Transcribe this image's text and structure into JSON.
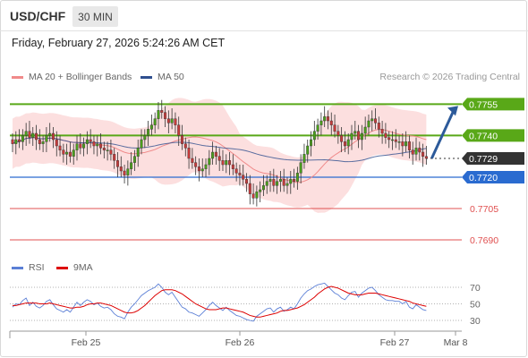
{
  "header": {
    "symbol": "USD/CHF",
    "timeframe": "30 MIN"
  },
  "datetime": "Friday, February 27, 2026 5:24:26 AM CET",
  "legend": {
    "ma20": {
      "label": "MA 20 + Bollinger Bands",
      "color": "#f08a8a"
    },
    "ma50": {
      "label": "MA 50",
      "color": "#2f4f8f"
    },
    "credit": "Research © 2026 Trading Central"
  },
  "rsi_legend": {
    "rsi": {
      "label": "RSI",
      "color": "#5b7fd6"
    },
    "ma9": {
      "label": "9MA",
      "color": "#dd0000"
    }
  },
  "colors": {
    "support_green": "#59a818",
    "pivot_blue": "#2a6bd0",
    "target_red": "#e05050",
    "current": "#333333",
    "arrow": "#2c5a9a",
    "candle_up": "#4a9e1c",
    "candle_down": "#c63b3b",
    "band_fill": "#fbd7d7"
  },
  "chart_data": {
    "type": "candlestick",
    "x_ticks": [
      "Feb 25",
      "Feb 26",
      "Feb 27",
      "Mar 8"
    ],
    "y_range": [
      0.7684,
      0.7762
    ],
    "price_levels": [
      {
        "value": 0.7755,
        "label": "0.7755",
        "kind": "resistance"
      },
      {
        "value": 0.774,
        "label": "0.7740",
        "kind": "resistance"
      },
      {
        "value": 0.7729,
        "label": "0.7729",
        "kind": "current"
      },
      {
        "value": 0.772,
        "label": "0.7720",
        "kind": "pivot"
      },
      {
        "value": 0.7705,
        "label": "0.7705",
        "kind": "support"
      },
      {
        "value": 0.769,
        "label": "0.7690",
        "kind": "support"
      }
    ],
    "closes": [
      0.7736,
      0.7738,
      0.7737,
      0.774,
      0.7742,
      0.7739,
      0.7741,
      0.7738,
      0.7736,
      0.7737,
      0.774,
      0.7741,
      0.7738,
      0.7735,
      0.7733,
      0.7731,
      0.7732,
      0.773,
      0.7733,
      0.7736,
      0.7734,
      0.7736,
      0.7738,
      0.7737,
      0.7735,
      0.7736,
      0.7734,
      0.7733,
      0.7733,
      0.7731,
      0.7728,
      0.7725,
      0.7723,
      0.7721,
      0.7724,
      0.7727,
      0.773,
      0.7734,
      0.7738,
      0.774,
      0.7743,
      0.7745,
      0.7748,
      0.7752,
      0.7751,
      0.7748,
      0.7746,
      0.7748,
      0.7745,
      0.774,
      0.7736,
      0.7734,
      0.7729,
      0.7727,
      0.7725,
      0.7723,
      0.7724,
      0.7726,
      0.7729,
      0.7732,
      0.773,
      0.7728,
      0.7726,
      0.7728,
      0.7726,
      0.7724,
      0.7722,
      0.7721,
      0.7719,
      0.7717,
      0.7712,
      0.771,
      0.7713,
      0.7714,
      0.7716,
      0.7718,
      0.7719,
      0.7716,
      0.7718,
      0.7719,
      0.7716,
      0.7717,
      0.7719,
      0.7718,
      0.7722,
      0.7727,
      0.7731,
      0.7735,
      0.7738,
      0.7742,
      0.7745,
      0.7747,
      0.7749,
      0.7747,
      0.7745,
      0.7742,
      0.774,
      0.7737,
      0.7735,
      0.7738,
      0.7741,
      0.7742,
      0.7738,
      0.7741,
      0.7744,
      0.7747,
      0.7748,
      0.7746,
      0.7743,
      0.7741,
      0.7739,
      0.7738,
      0.7738,
      0.7737,
      0.7737,
      0.7735,
      0.7737,
      0.7733,
      0.7731,
      0.7734,
      0.7732,
      0.773,
      0.7729
    ],
    "forecast": {
      "from": 0.7729,
      "to": 0.7755
    },
    "rsi": {
      "levels": [
        70,
        50,
        30
      ],
      "rsi": [
        46,
        50,
        49,
        54,
        57,
        48,
        52,
        47,
        45,
        48,
        53,
        55,
        49,
        44,
        42,
        40,
        43,
        40,
        46,
        52,
        48,
        52,
        55,
        53,
        49,
        51,
        47,
        45,
        46,
        43,
        38,
        35,
        34,
        32,
        40,
        46,
        50,
        55,
        60,
        63,
        66,
        68,
        70,
        74,
        70,
        64,
        61,
        64,
        58,
        52,
        46,
        44,
        40,
        39,
        37,
        35,
        39,
        43,
        48,
        52,
        48,
        45,
        42,
        46,
        42,
        39,
        36,
        35,
        33,
        31,
        30,
        29,
        35,
        38,
        41,
        44,
        45,
        40,
        44,
        46,
        41,
        43,
        46,
        44,
        50,
        57,
        62,
        66,
        68,
        71,
        73,
        74,
        75,
        71,
        67,
        63,
        61,
        57,
        55,
        60,
        64,
        65,
        58,
        63,
        66,
        69,
        70,
        66,
        61,
        58,
        55,
        54,
        54,
        53,
        53,
        50,
        53,
        46,
        44,
        49,
        46,
        43,
        42
      ],
      "ma9": [
        48,
        48,
        49,
        50,
        51,
        51,
        51,
        51,
        50,
        50,
        50,
        51,
        50,
        49,
        48,
        47,
        46,
        45,
        45,
        46,
        46,
        47,
        49,
        50,
        50,
        51,
        51,
        50,
        49,
        48,
        46,
        44,
        42,
        40,
        39,
        39,
        40,
        42,
        45,
        48,
        52,
        56,
        60,
        63,
        66,
        67,
        67,
        67,
        66,
        64,
        62,
        59,
        56,
        53,
        50,
        48,
        46,
        44,
        43,
        43,
        43,
        44,
        45,
        45,
        44,
        43,
        42,
        41,
        40,
        38,
        36,
        35,
        34,
        34,
        35,
        36,
        37,
        38,
        39,
        41,
        42,
        42,
        43,
        44,
        45,
        47,
        49,
        52,
        55,
        58,
        62,
        65,
        68,
        70,
        71,
        70,
        69,
        67,
        65,
        63,
        62,
        61,
        61,
        61,
        62,
        63,
        63,
        63,
        62,
        61,
        60,
        59,
        58,
        57,
        56,
        55,
        54,
        53,
        51,
        50,
        49,
        48,
        47
      ]
    }
  }
}
